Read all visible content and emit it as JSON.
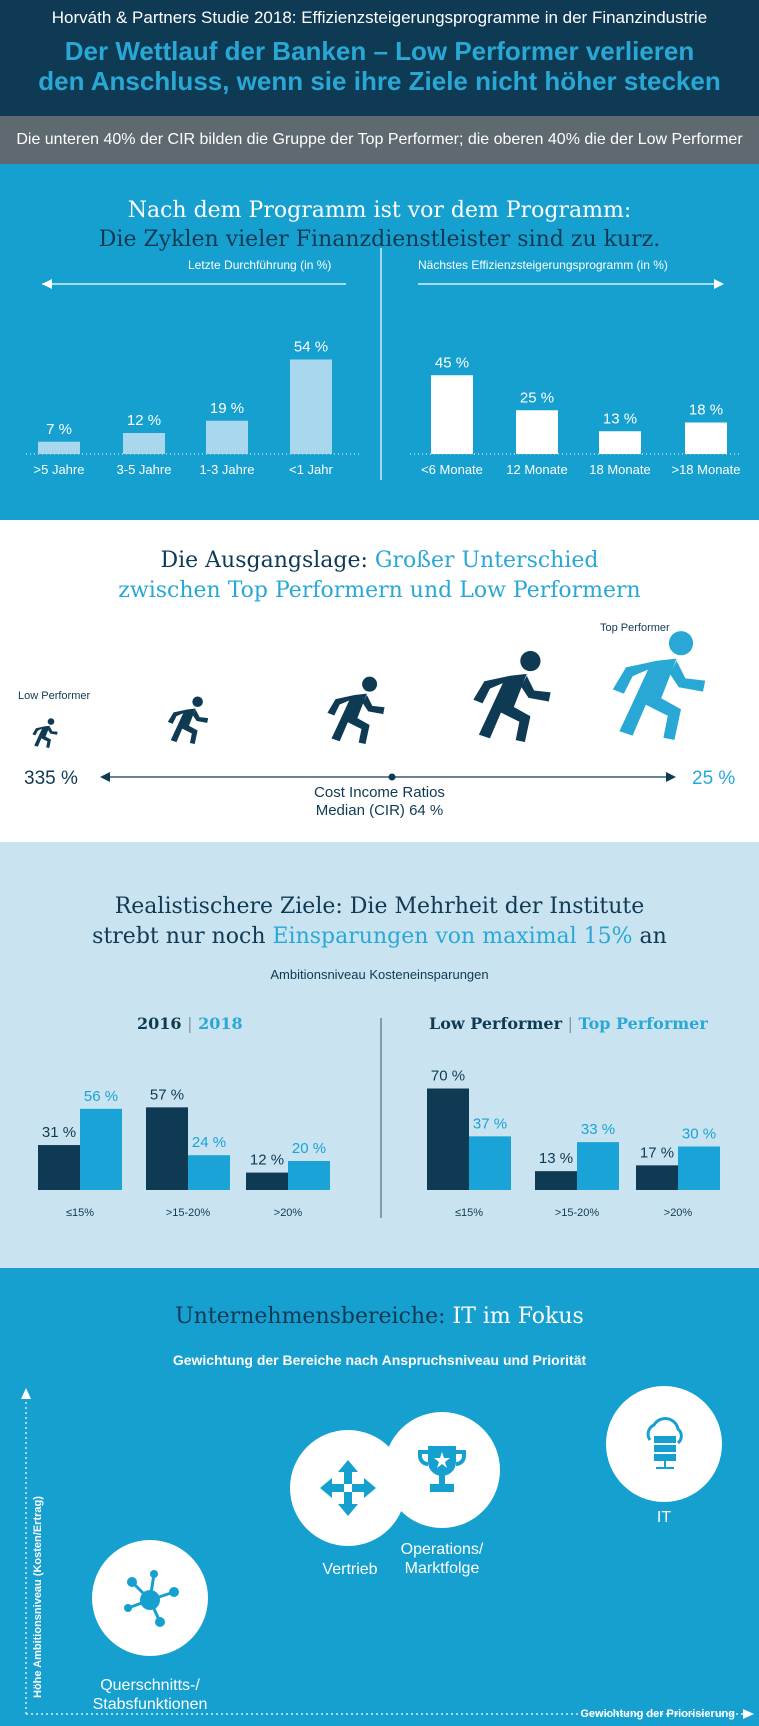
{
  "header": {
    "kicker": "Horváth & Partners Studie 2018: Effizienzsteigerungsprogramme in der Finanzindustrie",
    "title_line1": "Der Wettlauf der Banken – Low Performer verlieren",
    "title_line2": "den Anschluss, wenn sie ihre Ziele nicht höher stecken",
    "subbar": "Die unteren 40% der CIR bilden die Gruppe der Top Performer; die oberen 40% die der Low Performer"
  },
  "section1": {
    "title_line1": "Nach dem Programm ist vor dem Programm:",
    "title_line2": "Die Zyklen vieler Finanzdienstleister sind zu kurz."
  },
  "section2": {
    "title_dark": "Die Ausgangslage: ",
    "title_blue1": "Großer Unterschied",
    "title_blue2": "zwischen Top Performern und Low Performern",
    "low_label": "Low Performer",
    "top_label": "Top Performer",
    "low_value": "335 %",
    "top_value": "25 %",
    "cir_line1": "Cost Income Ratios",
    "cir_line2": "Median (CIR) 64 %"
  },
  "section3": {
    "title_line1": "Realistischere Ziele: Die Mehrheit der Institute",
    "title_line2_dark": "strebt nur noch ",
    "title_line2_blue": "Einsparungen von maximal 15%",
    "title_line2_end": " an",
    "subtitle": "Ambitionsniveau Kosteneinsparungen",
    "legend_left_a": "2016",
    "legend_left_b": "2018",
    "legend_right_a": "Low Performer",
    "legend_right_b": "Top Performer",
    "separator": "|"
  },
  "section4": {
    "title_dark": "Unternehmensbereiche: ",
    "title_white": "IT im Fokus",
    "subtitle": "Gewichtung der Bereiche nach Anspruchsniveau und Priorität",
    "y_axis": "Höhe Ambitionsniveau (Kosten/Ertrag)",
    "x_axis": "Gewichtung der Priorisierung",
    "areas": {
      "it": "IT",
      "vertrieb": "Vertrieb",
      "ops_line1": "Operations/",
      "ops_line2": "Marktfolge",
      "quer_line1": "Querschnitts-/",
      "quer_line2": "Stabsfunktionen"
    }
  },
  "chart_data": [
    {
      "type": "bar",
      "title": "Letzte Durchführung (in %)",
      "categories": [
        ">5 Jahre",
        "3-5 Jahre",
        "1-3 Jahre",
        "<1 Jahr"
      ],
      "values": [
        7,
        12,
        19,
        54
      ],
      "value_labels": [
        "7 %",
        "12 %",
        "19 %",
        "54 %"
      ],
      "color": "#a9d7ee"
    },
    {
      "type": "bar",
      "title": "Nächstes Effizienzsteigerungsprogramm (in %)",
      "categories": [
        "<6 Monate",
        "12 Monate",
        "18 Monate",
        ">18 Monate"
      ],
      "values": [
        45,
        25,
        13,
        18
      ],
      "value_labels": [
        "45 %",
        "25 %",
        "13 %",
        "18 %"
      ],
      "color": "#ffffff"
    },
    {
      "type": "bar",
      "categories": [
        "≤15%",
        ">15-20%",
        ">20%"
      ],
      "series": [
        {
          "name": "2016",
          "values": [
            31,
            57,
            12
          ],
          "labels": [
            "31 %",
            "57 %",
            "12 %"
          ],
          "color": "#0f3a54"
        },
        {
          "name": "2018",
          "values": [
            56,
            24,
            20
          ],
          "labels": [
            "56 %",
            "24 %",
            "20 %"
          ],
          "color": "#1aa3d6"
        }
      ]
    },
    {
      "type": "bar",
      "categories": [
        "≤15%",
        ">15-20%",
        ">20%"
      ],
      "series": [
        {
          "name": "Low Performer",
          "values": [
            70,
            13,
            17
          ],
          "labels": [
            "70 %",
            "13 %",
            "17 %"
          ],
          "color": "#0f3a54"
        },
        {
          "name": "Top Performer",
          "values": [
            37,
            33,
            30
          ],
          "labels": [
            "37 %",
            "33 %",
            "30 %"
          ],
          "color": "#1aa3d6"
        }
      ]
    }
  ]
}
